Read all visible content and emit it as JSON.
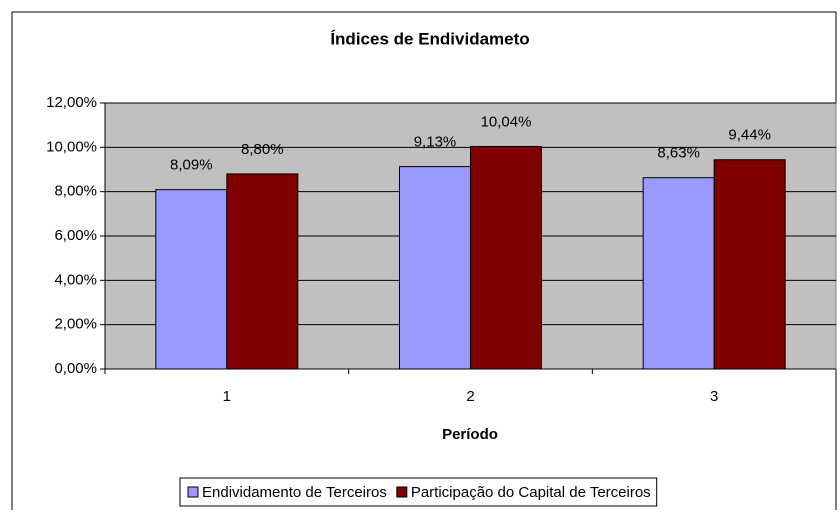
{
  "chart_data": {
    "type": "bar",
    "title": "Índices de Endividameto",
    "x_label": "Período",
    "categories": [
      "1",
      "2",
      "3"
    ],
    "series": [
      {
        "name": "Endividamento de Terceiros",
        "color": "#9999ff",
        "values": [
          8.09,
          9.13,
          8.63
        ],
        "value_labels": [
          "8,09%",
          "9,13%",
          "8,63%"
        ]
      },
      {
        "name": "Participação do Capital de Terceiros",
        "color": "#800000",
        "values": [
          8.8,
          10.04,
          9.44
        ],
        "value_labels": [
          "8,80%",
          "10,04%",
          "9,44%"
        ]
      }
    ],
    "ylim": [
      0,
      12
    ],
    "yticks": [
      {
        "value": 0,
        "label": "0,00%"
      },
      {
        "value": 2,
        "label": "2,00%"
      },
      {
        "value": 4,
        "label": "4,00%"
      },
      {
        "value": 6,
        "label": "6,00%"
      },
      {
        "value": 8,
        "label": "8,00%"
      },
      {
        "value": 10,
        "label": "10,00%"
      },
      {
        "value": 12,
        "label": "12,00%"
      }
    ],
    "grid": true,
    "legend": "bottom"
  }
}
